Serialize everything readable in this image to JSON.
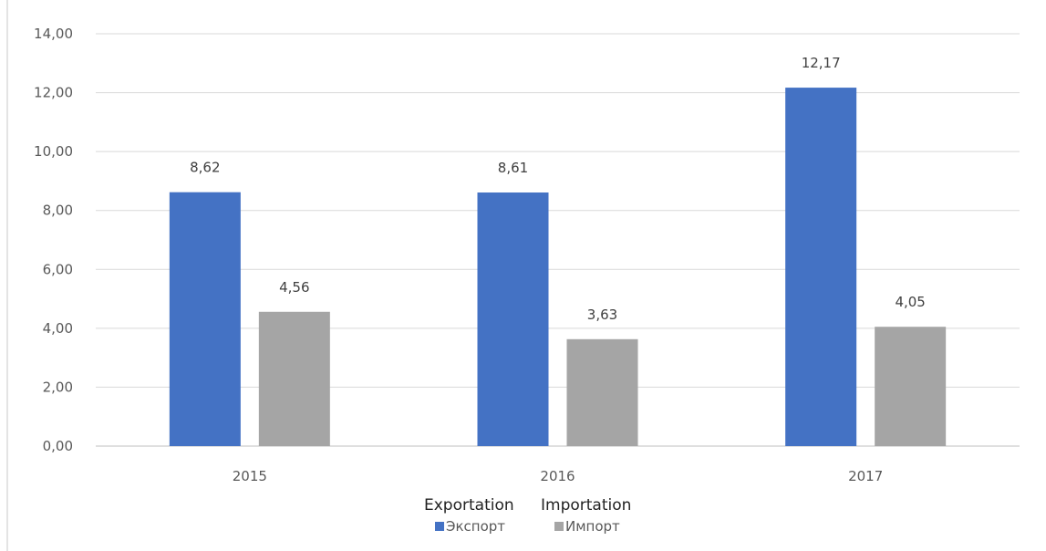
{
  "chart_data": {
    "type": "bar",
    "categories": [
      "2015",
      "2016",
      "2017"
    ],
    "series": [
      {
        "name": "Экспорт",
        "values": [
          8.62,
          8.61,
          12.17
        ],
        "color": "#4472c4"
      },
      {
        "name": "Импорт",
        "values": [
          4.56,
          3.63,
          4.05
        ],
        "color": "#a5a5a5"
      }
    ],
    "data_labels": [
      [
        "8,62",
        "8,61",
        "12,17"
      ],
      [
        "4,56",
        "3,63",
        "4,05"
      ]
    ],
    "ylim": [
      0,
      14
    ],
    "yticks": [
      0,
      2,
      4,
      6,
      8,
      10,
      12,
      14
    ],
    "ytick_labels": [
      "0,00",
      "2,00",
      "4,00",
      "6,00",
      "8,00",
      "10,00",
      "12,00",
      "14,00"
    ],
    "grid": true,
    "legend_position": "bottom",
    "annotations": {
      "legend_overlay": [
        "Exportation",
        "Importation"
      ]
    }
  }
}
